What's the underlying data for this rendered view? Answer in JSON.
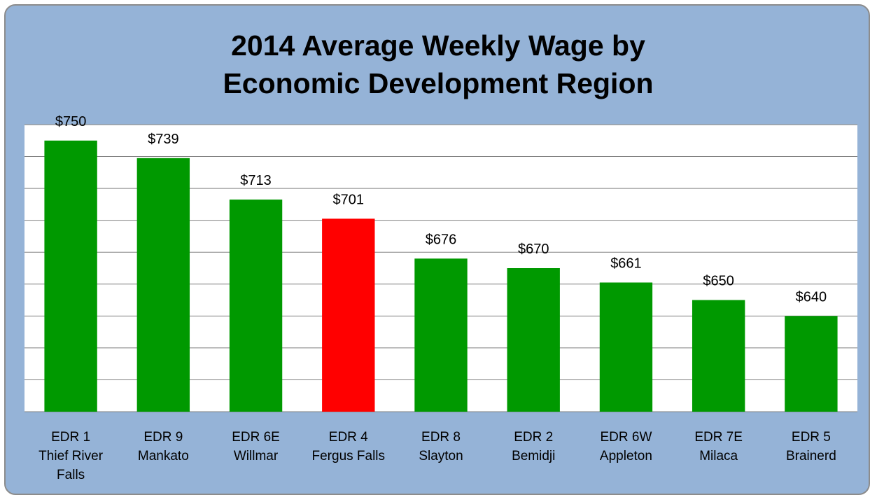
{
  "chart_data": {
    "type": "bar",
    "title": "2014 Average Weekly Wage by Economic Development Region",
    "categories": [
      "EDR 1\nThief River Falls",
      "EDR 9\nMankato",
      "EDR 6E\nWillmar",
      "EDR 4\nFergus Falls",
      "EDR 8\nSlayton",
      "EDR 2\nBemidji",
      "EDR 6W\nAppleton",
      "EDR 7E\nMilaca",
      "EDR 5\nBrainerd"
    ],
    "values": [
      750,
      739,
      713,
      701,
      676,
      670,
      661,
      650,
      640
    ],
    "value_labels": [
      "$750",
      "$739",
      "$713",
      "$701",
      "$676",
      "$670",
      "$661",
      "$650",
      "$640"
    ],
    "colors": [
      "#009900",
      "#009900",
      "#009900",
      "#ff0000",
      "#009900",
      "#009900",
      "#009900",
      "#009900",
      "#009900"
    ],
    "ylim": [
      580,
      760
    ],
    "yticks": [
      580,
      600,
      620,
      640,
      660,
      680,
      700,
      720,
      740,
      760
    ],
    "grid": true,
    "tick_labels": false
  }
}
